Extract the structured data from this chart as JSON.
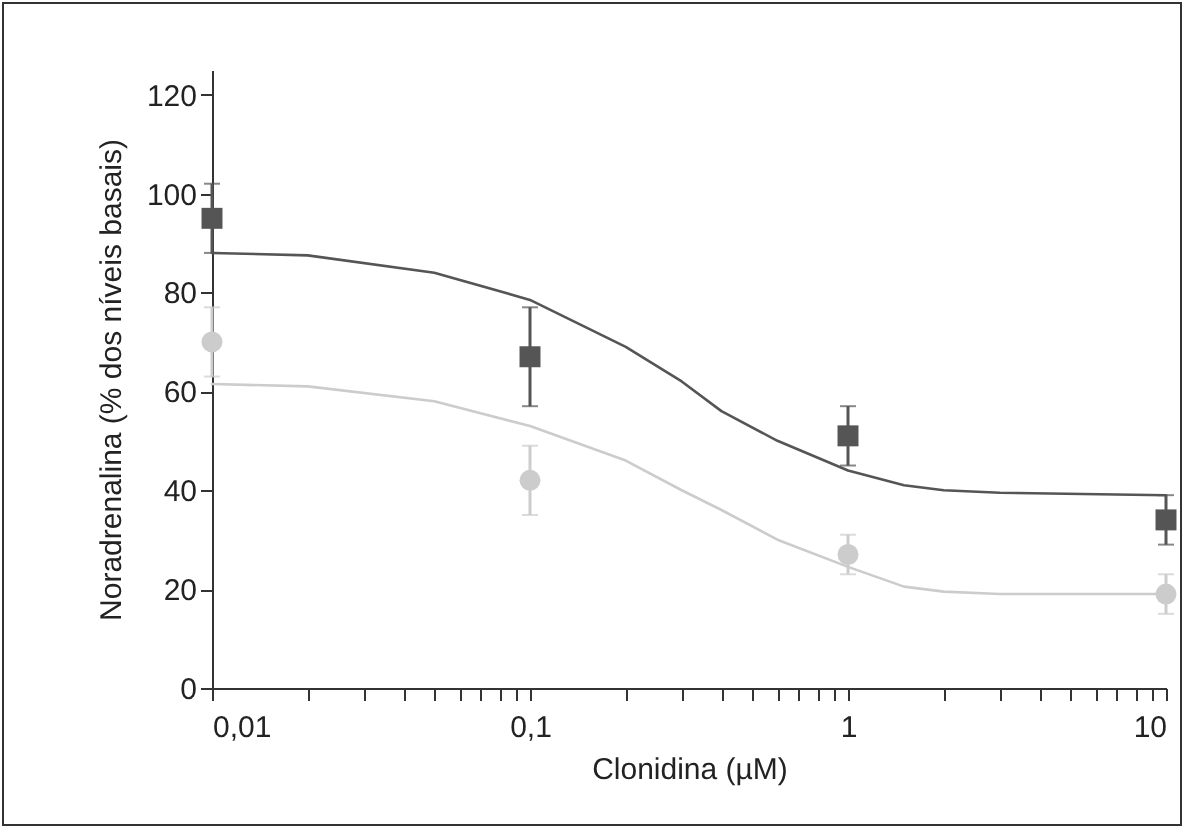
{
  "chart_data": {
    "type": "scatter",
    "xlabel": "Clonidina (µM)",
    "ylabel": "Noradrenalina (% dos níveis basais)",
    "log": "x",
    "grid": false,
    "xlim": [
      0.01,
      10
    ],
    "xticks": [
      {
        "value": 0.01,
        "label": "0,01"
      },
      {
        "value": 0.02,
        "label": null
      },
      {
        "value": 0.03,
        "label": null
      },
      {
        "value": 0.04,
        "label": null
      },
      {
        "value": 0.05,
        "label": null
      },
      {
        "value": 0.06,
        "label": null
      },
      {
        "value": 0.07,
        "label": null
      },
      {
        "value": 0.08,
        "label": null
      },
      {
        "value": 0.09,
        "label": null
      },
      {
        "value": 0.1,
        "label": "0,1"
      },
      {
        "value": 0.2,
        "label": null
      },
      {
        "value": 0.3,
        "label": null
      },
      {
        "value": 0.4,
        "label": null
      },
      {
        "value": 0.5,
        "label": null
      },
      {
        "value": 0.6,
        "label": null
      },
      {
        "value": 0.7,
        "label": null
      },
      {
        "value": 0.8,
        "label": null
      },
      {
        "value": 0.9,
        "label": null
      },
      1,
      {
        "value": 2,
        "label": null
      },
      {
        "value": 3,
        "label": null
      },
      {
        "value": 4,
        "label": null
      },
      {
        "value": 5,
        "label": null
      },
      {
        "value": 6,
        "label": null
      },
      {
        "value": 7,
        "label": null
      },
      {
        "value": 8,
        "label": null
      },
      {
        "value": 9,
        "label": null
      },
      10
    ],
    "ylim": [
      0,
      125
    ],
    "yticks": [
      0,
      20,
      40,
      60,
      80,
      100,
      120
    ],
    "x": [
      0.01,
      0.1,
      1,
      10
    ],
    "series": [
      {
        "type": "line",
        "color": "#555555",
        "marker": "none",
        "x": [
          0.01,
          0.02,
          0.05,
          0.1,
          0.2,
          0.3,
          0.4,
          0.6,
          1,
          1.5,
          2,
          3,
          10
        ],
        "values": [
          88,
          87.5,
          84,
          78.5,
          69,
          62,
          56,
          50,
          44,
          41,
          40,
          39.5,
          39
        ]
      },
      {
        "type": "line",
        "color": "#cccccc",
        "marker": "none",
        "x": [
          0.01,
          0.02,
          0.05,
          0.1,
          0.2,
          0.3,
          0.4,
          0.6,
          1,
          1.5,
          2,
          3,
          10
        ],
        "values": [
          61.5,
          61,
          58,
          53,
          46,
          40,
          36,
          30,
          24.5,
          20.5,
          19.5,
          19,
          19
        ]
      },
      {
        "type": "scatter",
        "color": "#555555",
        "marker": "square",
        "values": [
          95,
          67,
          51,
          34
        ],
        "errors": [
          7,
          10,
          6,
          5
        ]
      },
      {
        "type": "scatter",
        "color": "#cccccc",
        "marker": "circle",
        "values": [
          70,
          42,
          27,
          19
        ],
        "errors": [
          7,
          7,
          4,
          4
        ]
      }
    ]
  }
}
